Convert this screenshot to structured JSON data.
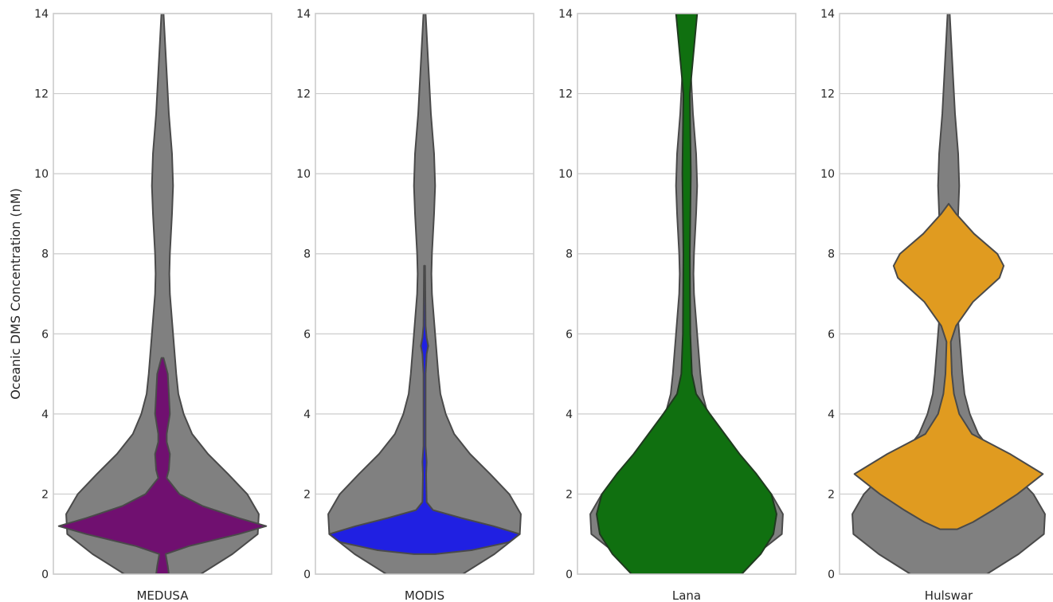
{
  "chart_data": {
    "type": "violin",
    "ylabel": "Oceanic DMS Concentration (nM)",
    "ylim": [
      0,
      14
    ],
    "yticks": [
      0,
      2,
      4,
      6,
      8,
      10,
      12,
      14
    ],
    "grid": true,
    "background_color": "#808080",
    "outline_color": "#4a4a4a",
    "background_distribution": {
      "profile": [
        [
          0,
          0.36
        ],
        [
          0.5,
          0.66
        ],
        [
          1.0,
          0.9
        ],
        [
          1.5,
          0.91
        ],
        [
          2.0,
          0.8
        ],
        [
          2.5,
          0.62
        ],
        [
          3.0,
          0.43
        ],
        [
          3.5,
          0.28
        ],
        [
          4.0,
          0.2
        ],
        [
          4.5,
          0.15
        ],
        [
          5.0,
          0.13
        ],
        [
          6.0,
          0.1
        ],
        [
          7.0,
          0.07
        ],
        [
          7.5,
          0.065
        ],
        [
          8.0,
          0.07
        ],
        [
          9.0,
          0.09
        ],
        [
          9.7,
          0.1
        ],
        [
          10.5,
          0.09
        ],
        [
          11.5,
          0.06
        ],
        [
          12.5,
          0.04
        ],
        [
          13.5,
          0.02
        ],
        [
          14.0,
          0.01
        ]
      ]
    },
    "panels": [
      {
        "name": "MEDUSA",
        "color": "#701070",
        "profile": [
          [
            0,
            0.06
          ],
          [
            0.2,
            0.05
          ],
          [
            0.5,
            0.03
          ],
          [
            0.7,
            0.25
          ],
          [
            1.0,
            0.72
          ],
          [
            1.2,
            0.98
          ],
          [
            1.4,
            0.72
          ],
          [
            1.7,
            0.38
          ],
          [
            2.0,
            0.16
          ],
          [
            2.2,
            0.1
          ],
          [
            2.4,
            0.04
          ],
          [
            2.6,
            0.06
          ],
          [
            3.0,
            0.07
          ],
          [
            3.3,
            0.04
          ],
          [
            3.5,
            0.04
          ],
          [
            4.0,
            0.07
          ],
          [
            4.5,
            0.06
          ],
          [
            5.0,
            0.05
          ],
          [
            5.4,
            0.01
          ]
        ]
      },
      {
        "name": "MODIS",
        "color": "#2020e2",
        "profile": [
          [
            0.5,
            0.1
          ],
          [
            0.6,
            0.45
          ],
          [
            0.8,
            0.8
          ],
          [
            1.0,
            0.9
          ],
          [
            1.2,
            0.65
          ],
          [
            1.4,
            0.35
          ],
          [
            1.6,
            0.08
          ],
          [
            1.8,
            0.02
          ],
          [
            2.5,
            0.015
          ],
          [
            2.8,
            0.02
          ],
          [
            3.2,
            0.01
          ],
          [
            5.0,
            0.01
          ],
          [
            5.5,
            0.02
          ],
          [
            5.7,
            0.035
          ],
          [
            5.9,
            0.02
          ],
          [
            6.2,
            0.01
          ],
          [
            7.7,
            0.005
          ]
        ]
      },
      {
        "name": "Lana",
        "color": "#107010",
        "profile": [
          [
            0,
            0.52
          ],
          [
            0.5,
            0.7
          ],
          [
            1.0,
            0.82
          ],
          [
            1.5,
            0.85
          ],
          [
            2.0,
            0.8
          ],
          [
            2.5,
            0.66
          ],
          [
            3.0,
            0.5
          ],
          [
            3.5,
            0.36
          ],
          [
            4.0,
            0.22
          ],
          [
            4.5,
            0.09
          ],
          [
            5.0,
            0.05
          ],
          [
            6.0,
            0.035
          ],
          [
            8.0,
            0.03
          ],
          [
            10.0,
            0.04
          ],
          [
            12.0,
            0.03
          ],
          [
            14.0,
            0.1
          ]
        ]
      },
      {
        "name": "Hulswar",
        "color": "#e09b20",
        "profile": [
          [
            1.12,
            0.08
          ],
          [
            1.3,
            0.23
          ],
          [
            1.6,
            0.42
          ],
          [
            2.0,
            0.65
          ],
          [
            2.5,
            0.89
          ],
          [
            3.0,
            0.58
          ],
          [
            3.5,
            0.22
          ],
          [
            4.0,
            0.1
          ],
          [
            4.5,
            0.05
          ],
          [
            5.0,
            0.03
          ],
          [
            5.8,
            0.02
          ],
          [
            6.2,
            0.07
          ],
          [
            6.8,
            0.23
          ],
          [
            7.4,
            0.48
          ],
          [
            7.7,
            0.52
          ],
          [
            8.0,
            0.46
          ],
          [
            8.5,
            0.24
          ],
          [
            9.0,
            0.07
          ],
          [
            9.25,
            0.0
          ]
        ]
      }
    ]
  }
}
